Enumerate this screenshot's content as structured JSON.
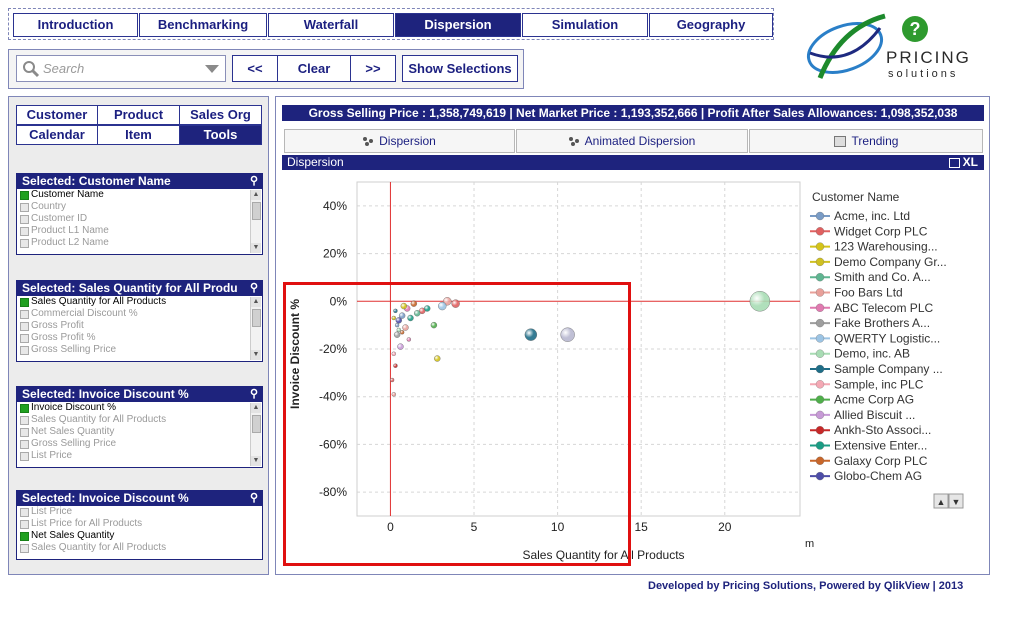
{
  "top_tabs": [
    {
      "label": "Introduction",
      "active": false
    },
    {
      "label": "Benchmarking",
      "active": false
    },
    {
      "label": "Waterfall",
      "active": false
    },
    {
      "label": "Dispersion",
      "active": true
    },
    {
      "label": "Simulation",
      "active": false
    },
    {
      "label": "Geography",
      "active": false
    }
  ],
  "logo": {
    "word1": "PRICING",
    "word2": "solutions",
    "help_glyph": "?"
  },
  "search": {
    "placeholder": "Search",
    "prev_label": "<<",
    "clear_label": "Clear",
    "next_label": ">>",
    "show_selections_label": "Show Selections"
  },
  "left_tabs": [
    {
      "label": "Customer",
      "active": false
    },
    {
      "label": "Product",
      "active": false
    },
    {
      "label": "Sales Org",
      "active": false
    },
    {
      "label": "Calendar",
      "active": false
    },
    {
      "label": "Item",
      "active": false
    },
    {
      "label": "Tools",
      "active": true
    }
  ],
  "listboxes": [
    {
      "title": "Selected:  Customer Name",
      "items": [
        {
          "label": "Customer Name",
          "selected": true
        },
        {
          "label": "Country",
          "selected": false
        },
        {
          "label": "Customer ID",
          "selected": false
        },
        {
          "label": "Product L1 Name",
          "selected": false
        },
        {
          "label": "Product L2 Name",
          "selected": false
        }
      ]
    },
    {
      "title": "Selected:  Sales Quantity for All Produ",
      "items": [
        {
          "label": "Sales Quantity for All Products",
          "selected": true
        },
        {
          "label": "Commercial Discount %",
          "selected": false
        },
        {
          "label": "Gross Profit",
          "selected": false
        },
        {
          "label": "Gross Profit %",
          "selected": false
        },
        {
          "label": "Gross Selling Price",
          "selected": false
        }
      ]
    },
    {
      "title": "Selected:  Invoice Discount %",
      "items": [
        {
          "label": "Invoice Discount %",
          "selected": true
        },
        {
          "label": "Sales Quantity for All Products",
          "selected": false
        },
        {
          "label": "Net Sales Quantity",
          "selected": false
        },
        {
          "label": "Gross Selling Price",
          "selected": false
        },
        {
          "label": "List Price",
          "selected": false
        }
      ]
    },
    {
      "title": "Selected:  Invoice Discount %",
      "items": [
        {
          "label": "List Price",
          "selected": false
        },
        {
          "label": "List Price for All Products",
          "selected": false
        },
        {
          "label": "Net Sales Quantity",
          "selected": true
        },
        {
          "label": "Sales Quantity for All Products",
          "selected": false
        }
      ]
    }
  ],
  "kpi_text": "Gross Selling Price : 1,358,749,619   |   Net Market Price : 1,193,352,666   |   Profit After Sales Allowances: 1,098,352,038",
  "sub_tabs": [
    {
      "label": "Dispersion",
      "icon": "dots-icon"
    },
    {
      "label": "Animated Dispersion",
      "icon": "dots-icon"
    },
    {
      "label": "Trending",
      "icon": "table-icon"
    }
  ],
  "dispersion_header": {
    "title": "Dispersion",
    "export_label": "XL"
  },
  "colors": {
    "navy": "#1e237d",
    "highlight": "#e01010",
    "axis_red": "#e03030"
  },
  "chart_data": {
    "type": "scatter",
    "xlabel": "Sales Quantity for All Products",
    "ylabel": "Invoice Discount %",
    "x_unit_suffix": "m",
    "xlim": [
      -2,
      24.5
    ],
    "ylim": [
      -90,
      50
    ],
    "x_ticks": [
      0,
      5,
      10,
      15,
      20
    ],
    "y_ticks": [
      40,
      20,
      0,
      -20,
      -40,
      -60,
      -80
    ],
    "y_tick_labels": [
      "40%",
      "20%",
      "0%",
      "-20%",
      "-40%",
      "-60%",
      "-80%"
    ],
    "legend_title": "Customer Name",
    "legend": [
      {
        "name": "Acme, inc. Ltd",
        "color": "#7a9cc6"
      },
      {
        "name": "Widget Corp PLC",
        "color": "#e06060"
      },
      {
        "name": "123 Warehousing...",
        "color": "#d4c41a"
      },
      {
        "name": "Demo Company Gr...",
        "color": "#cfc022"
      },
      {
        "name": "Smith and Co. A...",
        "color": "#5fb591"
      },
      {
        "name": "Foo Bars Ltd",
        "color": "#e8a09a"
      },
      {
        "name": "ABC Telecom PLC",
        "color": "#e07ab0"
      },
      {
        "name": "Fake Brothers A...",
        "color": "#9e9e9e"
      },
      {
        "name": "QWERTY Logistic...",
        "color": "#9cc4e4"
      },
      {
        "name": "Demo, inc. AB",
        "color": "#a8dcb4"
      },
      {
        "name": "Sample Company ...",
        "color": "#1f6e88"
      },
      {
        "name": "Sample, inc PLC",
        "color": "#f4a8b4"
      },
      {
        "name": "Acme Corp AG",
        "color": "#4fae4a"
      },
      {
        "name": "Allied Biscuit ...",
        "color": "#c79ad6"
      },
      {
        "name": "Ankh-Sto Associ...",
        "color": "#c72828"
      },
      {
        "name": "Extensive Enter...",
        "color": "#1a9c84"
      },
      {
        "name": "Galaxy Corp PLC",
        "color": "#c8662a"
      },
      {
        "name": "Globo-Chem AG",
        "color": "#4d4da8"
      }
    ],
    "points": [
      {
        "x": 22.1,
        "y": 0,
        "r": 10,
        "color": "#a8dcb4"
      },
      {
        "x": 8.4,
        "y": -14,
        "r": 6,
        "color": "#1f6e88"
      },
      {
        "x": 10.6,
        "y": -14,
        "r": 7,
        "color": "#b8b8d0"
      },
      {
        "x": 2.8,
        "y": -24,
        "r": 3,
        "color": "#d4c41a"
      },
      {
        "x": 2.6,
        "y": -10,
        "r": 3,
        "color": "#4fae4a"
      },
      {
        "x": 1.9,
        "y": -4,
        "r": 3,
        "color": "#e06060"
      },
      {
        "x": 3.4,
        "y": 0,
        "r": 4,
        "color": "#e8a09a"
      },
      {
        "x": 3.9,
        "y": -1,
        "r": 4,
        "color": "#e06060"
      },
      {
        "x": 3.1,
        "y": -2,
        "r": 4,
        "color": "#9cc4e4"
      },
      {
        "x": 1.4,
        "y": -1,
        "r": 3,
        "color": "#c8662a"
      },
      {
        "x": 1.0,
        "y": -3,
        "r": 3,
        "color": "#e07ab0"
      },
      {
        "x": 0.7,
        "y": -6,
        "r": 3,
        "color": "#7a9cc6"
      },
      {
        "x": 0.5,
        "y": -8,
        "r": 3,
        "color": "#4d4da8"
      },
      {
        "x": 0.9,
        "y": -11,
        "r": 3,
        "color": "#e8a09a"
      },
      {
        "x": 0.4,
        "y": -14,
        "r": 3,
        "color": "#9e9e9e"
      },
      {
        "x": 0.6,
        "y": -19,
        "r": 3,
        "color": "#c79ad6"
      },
      {
        "x": 0.2,
        "y": -22,
        "r": 2,
        "color": "#f4a8b4"
      },
      {
        "x": 0.3,
        "y": -27,
        "r": 2,
        "color": "#c72828"
      },
      {
        "x": 0.1,
        "y": -33,
        "r": 2,
        "color": "#e06060"
      },
      {
        "x": 0.2,
        "y": -39,
        "r": 2,
        "color": "#e8a09a"
      },
      {
        "x": 1.2,
        "y": -7,
        "r": 3,
        "color": "#1a9c84"
      },
      {
        "x": 0.8,
        "y": -2,
        "r": 3,
        "color": "#d4c41a"
      },
      {
        "x": 1.6,
        "y": -5,
        "r": 3,
        "color": "#5fb591"
      },
      {
        "x": 0.3,
        "y": -4,
        "r": 2,
        "color": "#1f6e88"
      },
      {
        "x": 0.5,
        "y": -12,
        "r": 2,
        "color": "#a8dcb4"
      },
      {
        "x": 1.1,
        "y": -16,
        "r": 2,
        "color": "#e07ab0"
      },
      {
        "x": 0.4,
        "y": -10,
        "r": 2,
        "color": "#7a9cc6"
      },
      {
        "x": 0.7,
        "y": -13,
        "r": 2,
        "color": "#c8662a"
      },
      {
        "x": 2.2,
        "y": -3,
        "r": 3,
        "color": "#1a9c84"
      },
      {
        "x": 0.2,
        "y": -7,
        "r": 2,
        "color": "#cfc022"
      }
    ],
    "legend_scroll": {
      "up": "▲",
      "down": "▼"
    }
  },
  "footer": "Developed by Pricing Solutions, Powered by QlikView | 2013"
}
